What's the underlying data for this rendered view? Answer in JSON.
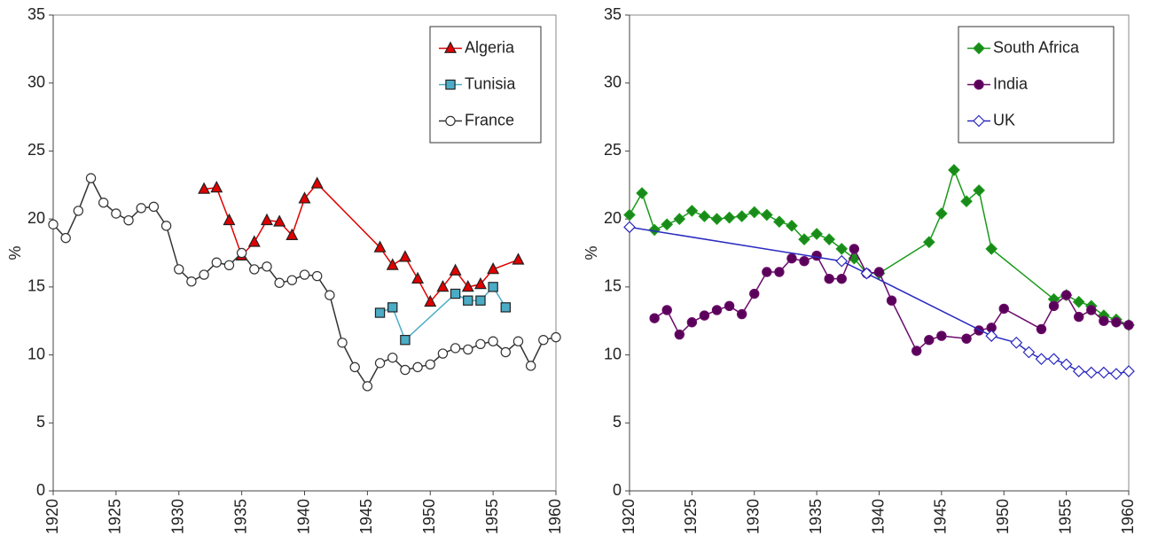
{
  "chart_data": [
    {
      "type": "line",
      "ylabel": "%",
      "xlim": [
        1920,
        1960
      ],
      "xticks": [
        1920,
        1925,
        1930,
        1935,
        1940,
        1945,
        1950,
        1955,
        1960
      ],
      "ylim": [
        0,
        35
      ],
      "yticks": [
        0,
        5,
        10,
        15,
        20,
        25,
        30,
        35
      ],
      "grid": false,
      "legend": "upper right",
      "series": [
        {
          "name": "Algeria",
          "color": "#e00000",
          "marker": "triangle",
          "marker_fill": "#e00000",
          "x": [
            1932,
            1933,
            1934,
            1935,
            1936,
            1937,
            1938,
            1939,
            1940,
            1941,
            1946,
            1947,
            1948,
            1949,
            1950,
            1951,
            1952,
            1953,
            1954,
            1955,
            1957
          ],
          "values": [
            22.2,
            22.3,
            19.9,
            17.3,
            18.3,
            19.9,
            19.8,
            18.8,
            21.5,
            22.6,
            17.9,
            16.6,
            17.2,
            15.6,
            13.9,
            15.0,
            16.2,
            15.0,
            15.2,
            16.3,
            17.0
          ]
        },
        {
          "name": "Tunisia",
          "color": "#4bacc6",
          "marker": "square",
          "marker_fill": "#4bacc6",
          "x": [
            1946,
            1947,
            1948,
            1952,
            1953,
            1954,
            1955,
            1956
          ],
          "values": [
            13.1,
            13.5,
            11.1,
            14.5,
            14.0,
            14.0,
            15.0,
            13.5
          ]
        },
        {
          "name": "France",
          "color": "#333333",
          "marker": "circle",
          "marker_fill": "#ffffff",
          "x": [
            1920,
            1921,
            1922,
            1923,
            1924,
            1925,
            1926,
            1927,
            1928,
            1929,
            1930,
            1931,
            1932,
            1933,
            1934,
            1935,
            1936,
            1937,
            1938,
            1939,
            1940,
            1941,
            1942,
            1943,
            1944,
            1945,
            1946,
            1947,
            1948,
            1949,
            1950,
            1951,
            1952,
            1953,
            1954,
            1955,
            1956,
            1957,
            1958,
            1959,
            1960
          ],
          "values": [
            19.6,
            18.6,
            20.6,
            23.0,
            21.2,
            20.4,
            19.9,
            20.8,
            20.9,
            19.5,
            16.3,
            15.4,
            15.9,
            16.8,
            16.6,
            17.5,
            16.3,
            16.5,
            15.3,
            15.5,
            15.9,
            15.8,
            14.4,
            10.9,
            9.1,
            7.7,
            9.4,
            9.8,
            8.9,
            9.1,
            9.3,
            10.1,
            10.5,
            10.4,
            10.8,
            11.0,
            10.2,
            11.0,
            9.2,
            11.1,
            11.3
          ]
        }
      ]
    },
    {
      "type": "line",
      "ylabel": "%",
      "xlim": [
        1920,
        1960
      ],
      "xticks": [
        1920,
        1925,
        1930,
        1935,
        1940,
        1945,
        1950,
        1955,
        1960
      ],
      "ylim": [
        0,
        35
      ],
      "yticks": [
        0,
        5,
        10,
        15,
        20,
        25,
        30,
        35
      ],
      "grid": false,
      "legend": "upper right",
      "series": [
        {
          "name": "South Africa",
          "color": "#1a9a1a",
          "marker": "diamond",
          "marker_fill": "#1a8a1a",
          "x": [
            1920,
            1921,
            1922,
            1923,
            1924,
            1925,
            1926,
            1927,
            1928,
            1929,
            1930,
            1931,
            1932,
            1933,
            1934,
            1935,
            1936,
            1937,
            1938,
            1939,
            1940,
            1944,
            1945,
            1946,
            1947,
            1948,
            1949,
            1954,
            1955,
            1956,
            1957,
            1958,
            1959,
            1960
          ],
          "values": [
            20.3,
            21.9,
            19.2,
            19.6,
            20.0,
            20.6,
            20.2,
            20.0,
            20.1,
            20.2,
            20.5,
            20.3,
            19.8,
            19.5,
            18.5,
            18.9,
            18.5,
            17.8,
            17.1,
            16.0,
            16.0,
            18.3,
            20.4,
            23.6,
            21.3,
            22.1,
            17.8,
            14.1,
            14.4,
            13.9,
            13.6,
            12.9,
            12.6,
            12.2
          ]
        },
        {
          "name": "India",
          "color": "#6a0a6a",
          "marker": "circle",
          "marker_fill": "#5a005a",
          "x": [
            1922,
            1923,
            1924,
            1925,
            1926,
            1927,
            1928,
            1929,
            1930,
            1931,
            1932,
            1933,
            1934,
            1935,
            1936,
            1937,
            1938,
            1939,
            1940,
            1941,
            1943,
            1944,
            1945,
            1947,
            1948,
            1949,
            1950,
            1953,
            1954,
            1955,
            1956,
            1957,
            1958,
            1959,
            1960
          ],
          "values": [
            12.7,
            13.3,
            11.5,
            12.4,
            12.9,
            13.3,
            13.6,
            13.0,
            14.5,
            16.1,
            16.1,
            17.1,
            16.9,
            17.3,
            15.6,
            15.6,
            17.8,
            16.0,
            16.1,
            14.0,
            10.3,
            11.1,
            11.4,
            11.2,
            11.8,
            12.0,
            13.4,
            11.9,
            13.6,
            14.4,
            12.8,
            13.3,
            12.5,
            12.4,
            12.2
          ]
        },
        {
          "name": "UK",
          "color": "#2a2ac0",
          "marker": "diamond",
          "marker_fill": "#ffffff",
          "x": [
            1920,
            1937,
            1939,
            1949,
            1951,
            1952,
            1953,
            1954,
            1955,
            1956,
            1957,
            1958,
            1959,
            1960
          ],
          "values": [
            19.4,
            16.9,
            16.0,
            11.4,
            10.9,
            10.2,
            9.7,
            9.7,
            9.3,
            8.8,
            8.7,
            8.7,
            8.6,
            8.8
          ]
        }
      ]
    }
  ]
}
